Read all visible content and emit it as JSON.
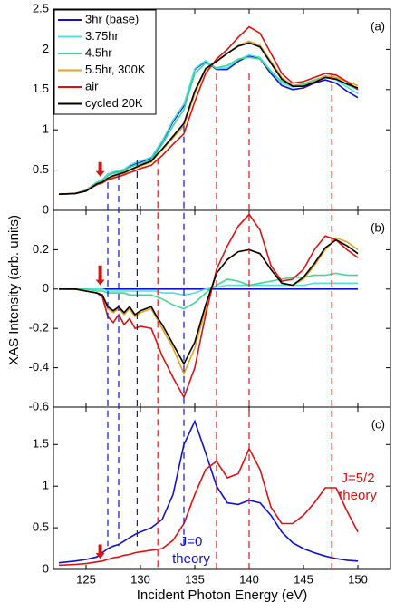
{
  "chart_data": [
    {
      "type": "line",
      "annotation": "(a)",
      "xlim": [
        122,
        153
      ],
      "ylim": [
        0,
        2.5
      ],
      "yticks": [
        0,
        0.5,
        1,
        1.5,
        2,
        2.5
      ],
      "legend": "upper left",
      "x": [
        122.5,
        124,
        125,
        126,
        126.5,
        127,
        127.5,
        128,
        128.5,
        129,
        129.5,
        130,
        131,
        131.5,
        132,
        133,
        134,
        135,
        136,
        137,
        138,
        139,
        140,
        141,
        142,
        143,
        144,
        145,
        146,
        147,
        148,
        149,
        150
      ],
      "series": [
        {
          "name": "3hr (base)",
          "color": "#1010d0",
          "values": [
            0.2,
            0.21,
            0.25,
            0.35,
            0.38,
            0.45,
            0.47,
            0.48,
            0.5,
            0.55,
            0.58,
            0.6,
            0.65,
            0.75,
            0.85,
            1.1,
            1.3,
            1.75,
            1.85,
            1.75,
            1.75,
            1.85,
            1.92,
            1.88,
            1.7,
            1.55,
            1.5,
            1.52,
            1.58,
            1.62,
            1.58,
            1.48,
            1.4
          ]
        },
        {
          "name": "3.75hr",
          "color": "#50e0e0",
          "values": [
            0.2,
            0.21,
            0.25,
            0.35,
            0.38,
            0.45,
            0.48,
            0.49,
            0.51,
            0.56,
            0.59,
            0.61,
            0.66,
            0.76,
            0.86,
            1.12,
            1.32,
            1.76,
            1.86,
            1.76,
            1.77,
            1.87,
            1.93,
            1.9,
            1.73,
            1.58,
            1.53,
            1.55,
            1.61,
            1.65,
            1.62,
            1.53,
            1.45
          ]
        },
        {
          "name": "4.5hr",
          "color": "#40d890",
          "values": [
            0.2,
            0.21,
            0.25,
            0.34,
            0.37,
            0.43,
            0.46,
            0.47,
            0.49,
            0.53,
            0.56,
            0.58,
            0.63,
            0.72,
            0.82,
            1.05,
            1.25,
            1.7,
            1.83,
            1.77,
            1.8,
            1.88,
            1.9,
            1.88,
            1.73,
            1.6,
            1.55,
            1.57,
            1.62,
            1.66,
            1.63,
            1.56,
            1.5
          ]
        },
        {
          "name": "5.5hr, 300K",
          "color": "#e8a020",
          "values": [
            0.2,
            0.21,
            0.24,
            0.33,
            0.35,
            0.4,
            0.42,
            0.44,
            0.46,
            0.5,
            0.52,
            0.55,
            0.6,
            0.68,
            0.75,
            0.9,
            1.05,
            1.45,
            1.75,
            1.85,
            1.95,
            2.05,
            2.1,
            2.05,
            1.85,
            1.65,
            1.55,
            1.55,
            1.6,
            1.67,
            1.65,
            1.6,
            1.55
          ]
        },
        {
          "name": "air",
          "color": "#e01010",
          "values": [
            0.2,
            0.21,
            0.24,
            0.32,
            0.34,
            0.38,
            0.4,
            0.42,
            0.44,
            0.47,
            0.49,
            0.52,
            0.56,
            0.62,
            0.68,
            0.82,
            0.95,
            1.35,
            1.7,
            1.88,
            2.0,
            2.15,
            2.28,
            2.2,
            1.95,
            1.7,
            1.58,
            1.6,
            1.65,
            1.7,
            1.68,
            1.6,
            1.5
          ]
        },
        {
          "name": "cycled 20K",
          "color": "#000000",
          "values": [
            0.2,
            0.21,
            0.24,
            0.33,
            0.35,
            0.4,
            0.43,
            0.45,
            0.47,
            0.5,
            0.53,
            0.56,
            0.61,
            0.69,
            0.76,
            0.92,
            1.08,
            1.48,
            1.76,
            1.85,
            1.95,
            2.04,
            2.08,
            2.03,
            1.83,
            1.63,
            1.54,
            1.54,
            1.59,
            1.65,
            1.63,
            1.57,
            1.52
          ]
        }
      ]
    },
    {
      "type": "line",
      "annotation": "(b)",
      "y_label": "XAS Intensity (arb. units)",
      "xlim": [
        122,
        153
      ],
      "ylim": [
        -0.6,
        0.4
      ],
      "yticks": [
        -0.6,
        -0.4,
        -0.2,
        0,
        0.2
      ],
      "x": [
        122.5,
        124,
        125,
        126,
        126.5,
        127,
        127.5,
        128,
        128.5,
        129,
        129.5,
        130,
        131,
        131.5,
        132,
        133,
        134,
        135,
        136,
        137,
        138,
        139,
        140,
        141,
        142,
        143,
        144,
        145,
        146,
        147,
        148,
        149,
        150
      ],
      "series": [
        {
          "color": "#1010d0",
          "values": [
            0,
            0,
            0,
            0,
            0,
            0,
            0,
            0,
            0,
            0,
            0,
            0,
            0,
            0,
            0,
            0,
            0,
            0,
            0,
            0,
            0,
            0,
            0,
            0,
            0,
            0,
            0,
            0,
            0,
            0,
            0,
            0,
            0
          ]
        },
        {
          "color": "#50e0e0",
          "values": [
            0,
            0,
            0,
            0,
            0,
            -0.01,
            -0.01,
            -0.01,
            -0.01,
            -0.01,
            -0.01,
            -0.01,
            -0.01,
            -0.01,
            -0.02,
            -0.02,
            -0.03,
            -0.02,
            0,
            0.01,
            0.02,
            0.02,
            0.02,
            0.02,
            0.02,
            0.02,
            0.02,
            0.02,
            0.03,
            0.03,
            0.03,
            0.03,
            0.03
          ]
        },
        {
          "color": "#40d890",
          "values": [
            0,
            0,
            0,
            -0.01,
            -0.01,
            -0.02,
            -0.02,
            -0.02,
            -0.02,
            -0.03,
            -0.03,
            -0.03,
            -0.03,
            -0.04,
            -0.05,
            -0.08,
            -0.1,
            -0.07,
            -0.02,
            0.02,
            0.05,
            0.04,
            0.02,
            0.03,
            0.04,
            0.05,
            0.06,
            0.06,
            0.07,
            0.07,
            0.08,
            0.07,
            0.07
          ]
        },
        {
          "color": "#e8a020",
          "values": [
            0,
            0,
            -0.01,
            -0.02,
            -0.03,
            -0.1,
            -0.12,
            -0.1,
            -0.13,
            -0.1,
            -0.14,
            -0.12,
            -0.1,
            -0.15,
            -0.2,
            -0.3,
            -0.43,
            -0.3,
            -0.1,
            0.08,
            0.15,
            0.19,
            0.2,
            0.18,
            0.1,
            0.03,
            0.02,
            0.05,
            0.12,
            0.2,
            0.26,
            0.24,
            0.2
          ]
        },
        {
          "color": "#e01010",
          "values": [
            0,
            0,
            -0.01,
            -0.02,
            -0.04,
            -0.14,
            -0.17,
            -0.13,
            -0.18,
            -0.15,
            -0.2,
            -0.19,
            -0.2,
            -0.27,
            -0.34,
            -0.45,
            -0.55,
            -0.4,
            -0.13,
            0.1,
            0.22,
            0.32,
            0.38,
            0.3,
            0.12,
            0.04,
            0.05,
            0.1,
            0.2,
            0.27,
            0.25,
            0.2,
            0.16
          ]
        },
        {
          "color": "#000000",
          "values": [
            0,
            0,
            -0.01,
            -0.02,
            -0.03,
            -0.09,
            -0.11,
            -0.09,
            -0.12,
            -0.09,
            -0.13,
            -0.11,
            -0.09,
            -0.14,
            -0.18,
            -0.28,
            -0.38,
            -0.27,
            -0.08,
            0.08,
            0.15,
            0.19,
            0.2,
            0.18,
            0.1,
            0.03,
            0.02,
            0.06,
            0.13,
            0.21,
            0.25,
            0.22,
            0.18
          ]
        }
      ]
    },
    {
      "type": "line",
      "annotation": "(c)",
      "x_label": "Incident Photon Energy (eV)",
      "xlim": [
        122,
        153
      ],
      "ylim": [
        0,
        1.95
      ],
      "yticks": [
        0,
        0.5,
        1,
        1.5
      ],
      "xticks": [
        125,
        130,
        135,
        140,
        145,
        150
      ],
      "x": [
        122.5,
        124,
        125,
        126,
        126.5,
        127,
        127.5,
        128,
        128.5,
        129,
        129.5,
        130,
        131,
        131.5,
        132,
        133,
        134,
        135,
        136,
        137,
        138,
        139,
        140,
        141,
        142,
        143,
        144,
        145,
        146,
        147,
        148,
        149,
        150
      ],
      "series": [
        {
          "name": "J=0 theory",
          "label_lines": [
            "J=0",
            "theory"
          ],
          "color": "#1010d0",
          "values": [
            0.08,
            0.1,
            0.12,
            0.15,
            0.2,
            0.25,
            0.28,
            0.3,
            0.34,
            0.38,
            0.42,
            0.45,
            0.5,
            0.55,
            0.6,
            0.9,
            1.5,
            1.78,
            1.4,
            1.0,
            0.8,
            0.78,
            0.83,
            0.8,
            0.65,
            0.45,
            0.32,
            0.25,
            0.2,
            0.16,
            0.13,
            0.11,
            0.1
          ]
        },
        {
          "name": "J=5/2 theory",
          "label_lines": [
            "J=5/2",
            "theory"
          ],
          "color": "#e01010",
          "values": [
            0.05,
            0.06,
            0.07,
            0.09,
            0.1,
            0.12,
            0.14,
            0.15,
            0.17,
            0.18,
            0.2,
            0.21,
            0.23,
            0.24,
            0.25,
            0.35,
            0.55,
            0.9,
            1.2,
            1.3,
            1.1,
            1.15,
            1.45,
            1.2,
            0.75,
            0.55,
            0.55,
            0.65,
            0.8,
            0.98,
            0.98,
            0.7,
            0.45
          ]
        }
      ]
    }
  ],
  "guide_lines": [
    {
      "x": 127,
      "color": "#1010d0"
    },
    {
      "x": 128,
      "color": "#1010d0"
    },
    {
      "x": 129.7,
      "color": "#1010d0"
    },
    {
      "x": 134,
      "color": "#1010d0"
    },
    {
      "x": 131.6,
      "color": "#e01010"
    },
    {
      "x": 137,
      "color": "#e01010"
    },
    {
      "x": 140,
      "color": "#e01010"
    },
    {
      "x": 147.6,
      "color": "#e01010"
    }
  ],
  "arrow_x": 126.3
}
